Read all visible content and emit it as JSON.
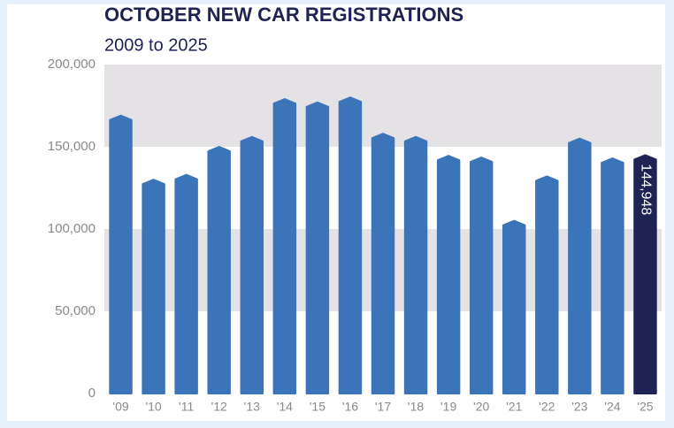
{
  "chart_data": {
    "type": "bar",
    "title": "OCTOBER NEW CAR REGISTRATIONS",
    "subtitle": "2009 to 2025",
    "categories": [
      "'09",
      "'10",
      "'11",
      "'12",
      "'13",
      "'14",
      "'15",
      "'16",
      "'17",
      "'18",
      "'19",
      "'20",
      "'21",
      "'22",
      "'23",
      "'24",
      "'25"
    ],
    "values": [
      169000,
      130000,
      133000,
      150000,
      156000,
      179000,
      177000,
      180000,
      158000,
      156000,
      144500,
      143500,
      105000,
      132000,
      155000,
      143000,
      144948
    ],
    "value_labels": [
      null,
      null,
      null,
      null,
      null,
      null,
      null,
      null,
      null,
      null,
      null,
      null,
      null,
      null,
      null,
      null,
      "144,948"
    ],
    "colors": [
      "#3b74b9",
      "#3b74b9",
      "#3b74b9",
      "#3b74b9",
      "#3b74b9",
      "#3b74b9",
      "#3b74b9",
      "#3b74b9",
      "#3b74b9",
      "#3b74b9",
      "#3b74b9",
      "#3b74b9",
      "#3b74b9",
      "#3b74b9",
      "#3b74b9",
      "#3b74b9",
      "#1f2353"
    ],
    "ylim": [
      0,
      200000
    ],
    "yticks": [
      0,
      {
        "value": 50000,
        "label": "50,000"
      },
      {
        "value": 100000,
        "label": "100,000"
      },
      {
        "value": 150000,
        "label": "150,000"
      },
      {
        "value": 200000,
        "label": "200,000"
      }
    ],
    "grid_bands": true
  }
}
